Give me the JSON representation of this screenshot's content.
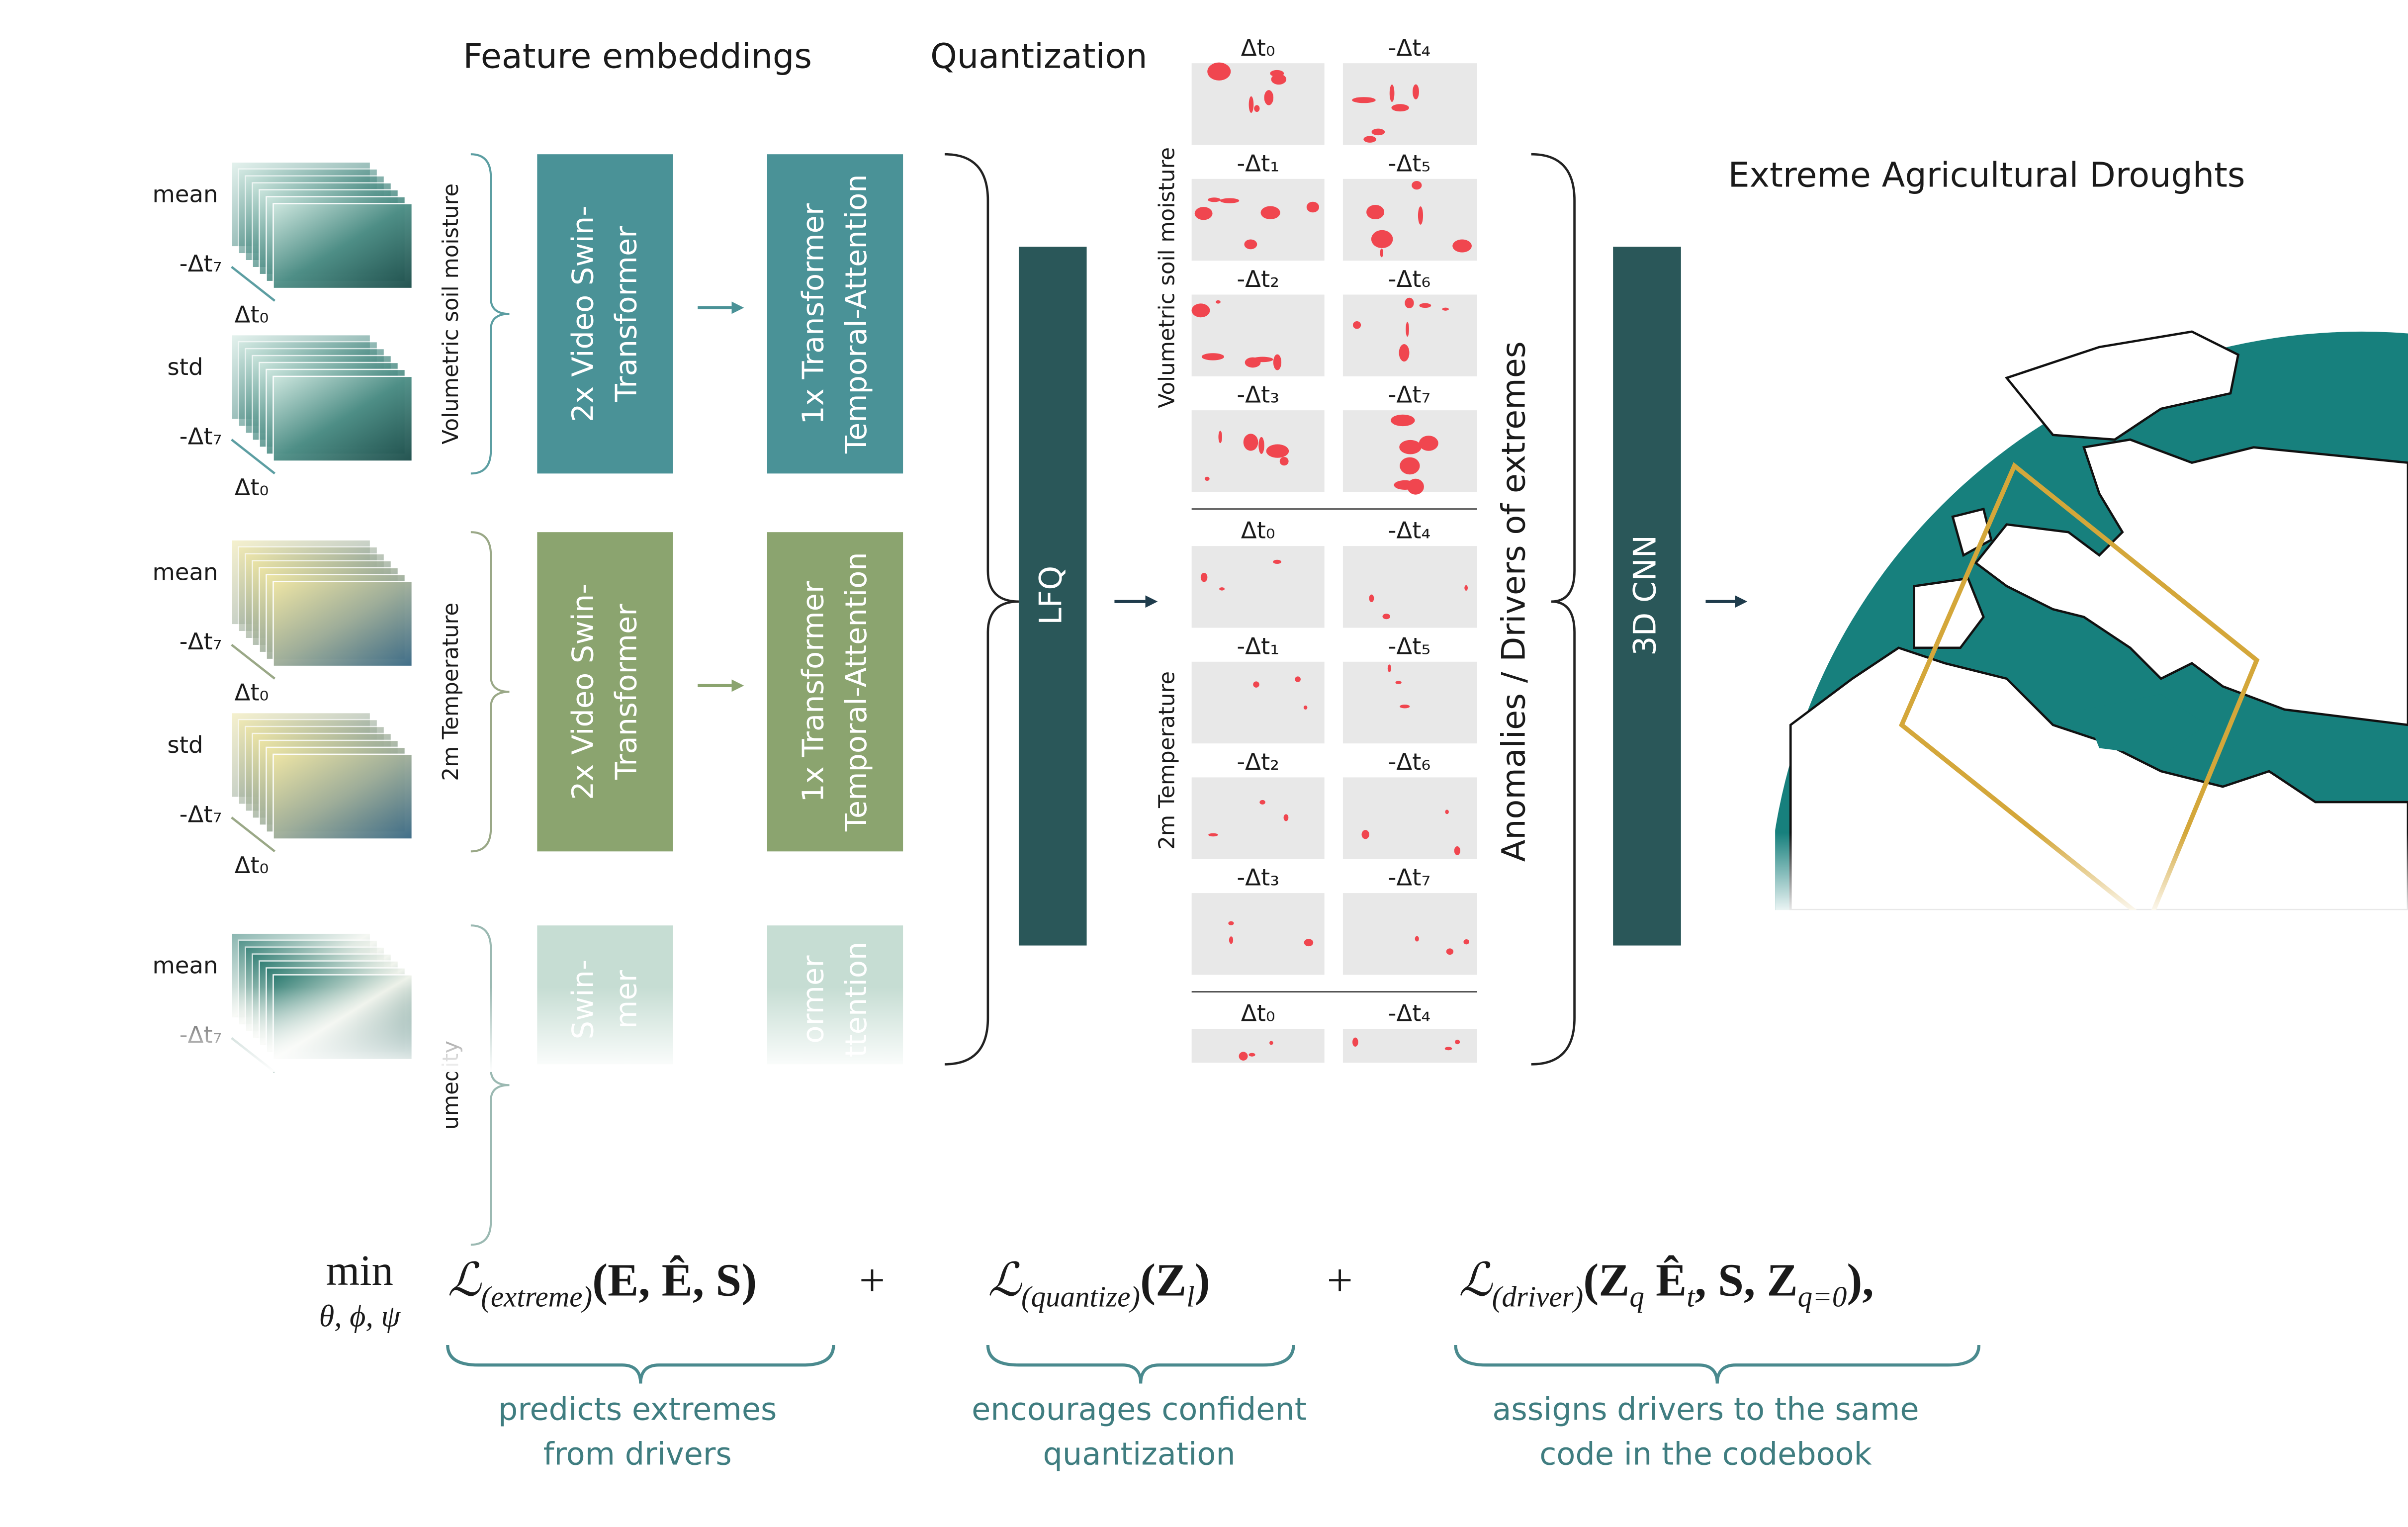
{
  "headers": {
    "feature_embeddings": "Feature embeddings",
    "quantization": "Quantization",
    "output": "Extreme Agricultural Droughts"
  },
  "inputs": [
    {
      "variable": "Volumetric soil moisture",
      "stats": [
        {
          "name": "mean",
          "from": "-Δt₇",
          "to": "Δt₀"
        },
        {
          "name": "std",
          "from": "-Δt₇",
          "to": "Δt₀"
        }
      ],
      "swin": [
        "2x Video Swin-",
        "Transformer"
      ],
      "temporal": [
        "1x Transformer",
        "Temporal-Attention"
      ]
    },
    {
      "variable": "2m Temperature",
      "stats": [
        {
          "name": "mean",
          "from": "-Δt₇",
          "to": "Δt₀"
        },
        {
          "name": "std",
          "from": "-Δt₇",
          "to": "Δt₀"
        }
      ],
      "swin": [
        "2x Video Swin-",
        "Transformer"
      ],
      "temporal": [
        "1x Transformer",
        "Temporal-Attention"
      ]
    },
    {
      "variable": "umedity",
      "stats": [
        {
          "name": "mean",
          "from": "-Δt₇"
        }
      ],
      "swin": [
        "Swin-",
        "mer"
      ],
      "temporal": [
        "ormer",
        "ttention"
      ]
    }
  ],
  "lfq": "LFQ",
  "cnn": "3D CNN",
  "drivers_label": "Anomalies / Drivers of extremes",
  "anomaly_groups": [
    {
      "variable": "Volumetric soil moisture",
      "labels": [
        "Δt₀",
        "-Δt₄",
        "-Δt₁",
        "-Δt₅",
        "-Δt₂",
        "-Δt₆",
        "-Δt₃",
        "-Δt₇"
      ]
    },
    {
      "variable": "2m Temperature",
      "labels": [
        "Δt₀",
        "-Δt₄",
        "-Δt₁",
        "-Δt₅",
        "-Δt₂",
        "-Δt₆",
        "-Δt₃",
        "-Δt₇"
      ]
    },
    {
      "labels": [
        "Δt₀",
        "-Δt₄"
      ]
    }
  ],
  "equation": {
    "min": "min",
    "params": "θ, ϕ, ψ",
    "terms": [
      {
        "loss": "ℒ",
        "sub": "(extreme)",
        "args": [
          {
            "text": "(E, Ê, S)"
          }
        ],
        "op": "+"
      },
      {
        "loss": "ℒ",
        "sub": "(quantize)",
        "args": [
          {
            "text": "(Z",
            "sub": "l"
          },
          {
            "text": ")"
          }
        ],
        "op": "+"
      },
      {
        "loss": "ℒ",
        "sub": "(driver)",
        "args": [
          {
            "text": "(Z",
            "sub": "q"
          },
          {
            "text": " Ê",
            "sub": "t"
          },
          {
            "text": ", S, Z",
            "sub": "q=0"
          },
          {
            "text": "),"
          }
        ]
      }
    ],
    "captions": [
      [
        "predicts extremes",
        "from drivers"
      ],
      [
        "encourages confident",
        "quantization"
      ],
      [
        "assigns drivers to the same",
        "code in the codebook"
      ]
    ]
  }
}
